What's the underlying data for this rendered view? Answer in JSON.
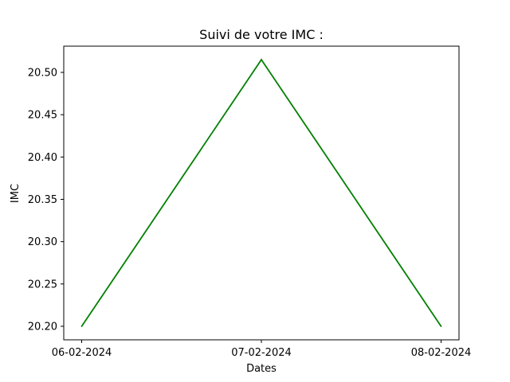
{
  "chart_data": {
    "type": "line",
    "title": "Suivi de votre IMC :",
    "xlabel": "Dates",
    "ylabel": "IMC",
    "x": [
      "06-02-2024",
      "07-02-2024",
      "08-02-2024"
    ],
    "series": [
      {
        "values": [
          20.2,
          20.515,
          20.2
        ],
        "color": "#008000"
      }
    ],
    "yticks": [
      "20.20",
      "20.25",
      "20.30",
      "20.35",
      "20.40",
      "20.45",
      "20.50"
    ],
    "ylim": [
      20.184,
      20.531
    ],
    "grid": false,
    "legend": "none"
  }
}
